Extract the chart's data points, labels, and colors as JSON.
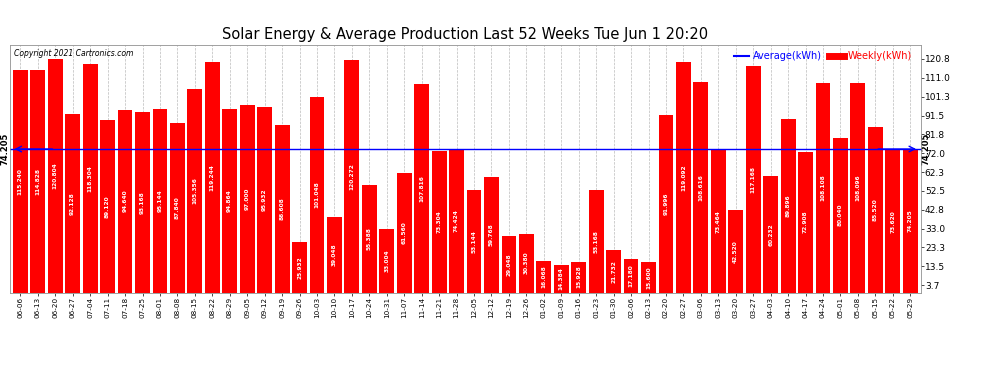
{
  "title": "Solar Energy & Average Production Last 52 Weeks Tue Jun 1 20:20",
  "copyright": "Copyright 2021 Cartronics.com",
  "legend_avg": "Average(kWh)",
  "legend_weekly": "Weekly(kWh)",
  "average": 74.205,
  "bar_color": "#ff0000",
  "avg_line_color": "#0000ff",
  "background_color": "#ffffff",
  "grid_color": "#bbbbbb",
  "ylabel_right_values": [
    3.7,
    13.5,
    23.3,
    33.0,
    42.8,
    52.5,
    62.3,
    72.0,
    81.8,
    91.5,
    101.3,
    111.0,
    120.8
  ],
  "labels": [
    "06-06",
    "06-13",
    "06-20",
    "06-27",
    "07-04",
    "07-11",
    "07-18",
    "07-25",
    "08-01",
    "08-08",
    "08-15",
    "08-22",
    "08-29",
    "09-05",
    "09-12",
    "09-19",
    "09-26",
    "10-03",
    "10-10",
    "10-17",
    "10-24",
    "10-31",
    "11-07",
    "11-14",
    "11-21",
    "11-28",
    "12-05",
    "12-12",
    "12-19",
    "12-26",
    "01-02",
    "01-09",
    "01-16",
    "01-23",
    "01-30",
    "02-06",
    "02-13",
    "02-20",
    "02-27",
    "03-06",
    "03-13",
    "03-20",
    "03-27",
    "04-03",
    "04-10",
    "04-17",
    "04-24",
    "05-01",
    "05-08",
    "05-15",
    "05-22",
    "05-29"
  ],
  "values": [
    115.24,
    114.828,
    120.804,
    92.128,
    118.304,
    89.12,
    94.64,
    93.168,
    95.144,
    87.84,
    105.356,
    119.244,
    94.864,
    97.0,
    95.932,
    86.608,
    25.932,
    101.048,
    39.048,
    120.272,
    55.388,
    33.004,
    61.56,
    107.816,
    73.304,
    74.424,
    53.144,
    59.768,
    29.048,
    30.38,
    16.068,
    14.384,
    15.928,
    53.168,
    21.732,
    17.18,
    15.6,
    91.996,
    119.092,
    108.616,
    73.464,
    42.52,
    117.168,
    60.232,
    89.896,
    72.908,
    108.108,
    80.04,
    108.096,
    85.52,
    73.62,
    74.205
  ],
  "avg_label": "74.205",
  "ylim_max": 128.0,
  "bar_width": 0.85
}
